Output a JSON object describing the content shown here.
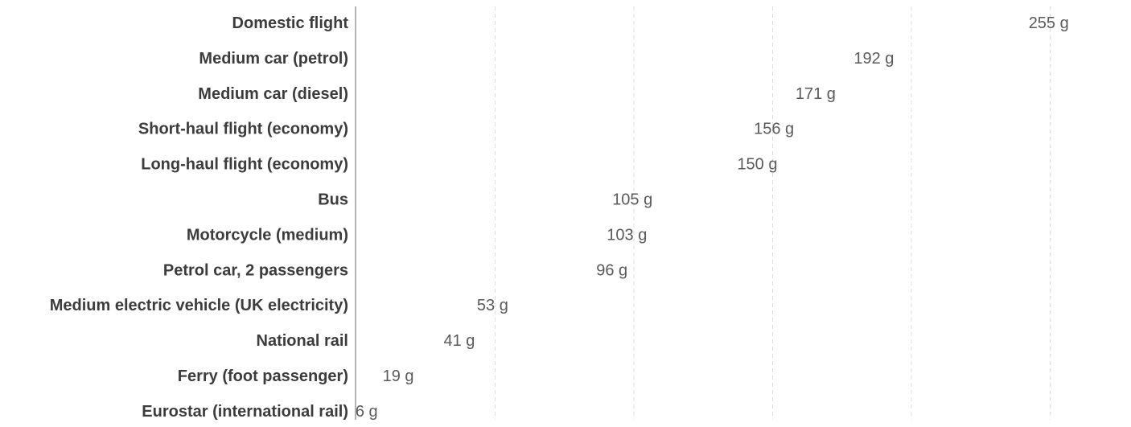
{
  "chart_data": {
    "type": "bar",
    "orientation": "horizontal",
    "categories": [
      "Domestic flight",
      "Medium car (petrol)",
      "Medium car (diesel)",
      "Short-haul flight (economy)",
      "Long-haul flight (economy)",
      "Bus",
      "Motorcycle (medium)",
      "Petrol car, 2 passengers",
      "Medium electric vehicle (UK electricity)",
      "National rail",
      "Ferry (foot passenger)",
      "Eurostar (international rail)"
    ],
    "values": [
      255,
      192,
      171,
      156,
      150,
      105,
      103,
      96,
      53,
      41,
      19,
      6
    ],
    "value_labels": [
      "255 g",
      "192 g",
      "171 g",
      "156 g",
      "150 g",
      "105 g",
      "103 g",
      "96 g",
      "53 g",
      "41 g",
      "19 g",
      "6 g"
    ],
    "unit": "g",
    "xlim": [
      0,
      250
    ],
    "gridlines": [
      50,
      100,
      150,
      200,
      250
    ],
    "grid": true,
    "colors": {
      "axis": "#999999",
      "grid": "#dddddd",
      "category_text": "#3c3c3c",
      "value_text": "#5a5a5a"
    }
  }
}
